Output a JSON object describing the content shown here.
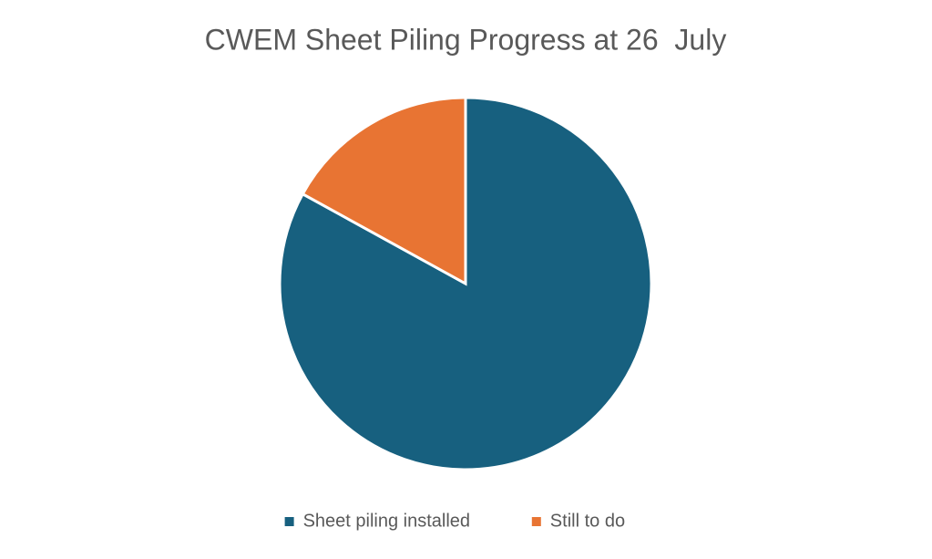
{
  "chart_data": {
    "type": "pie",
    "title": "CWEM Sheet Piling Progress at 26  July",
    "categories": [
      "Sheet piling installed",
      "Still to do"
    ],
    "values": [
      83,
      17
    ],
    "colors": [
      "#17607f",
      "#e87433"
    ],
    "legend": "bottom"
  }
}
